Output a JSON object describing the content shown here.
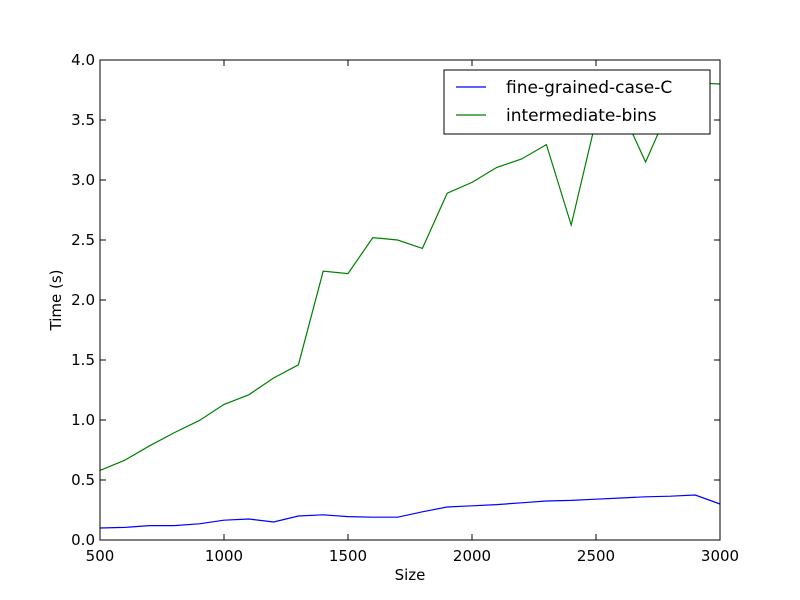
{
  "chart_data": {
    "type": "line",
    "title": "",
    "xlabel": "Size",
    "ylabel": "Time (s)",
    "xlim": [
      500,
      3000
    ],
    "ylim": [
      0,
      4.0
    ],
    "grid": false,
    "legend_position": "top-right",
    "x_ticks": [
      500,
      1000,
      1500,
      2000,
      2500,
      3000
    ],
    "x_tick_labels": [
      "500",
      "1000",
      "1500",
      "2000",
      "2500",
      "3000"
    ],
    "y_ticks": [
      0,
      0.5,
      1.0,
      1.5,
      2.0,
      2.5,
      3.0,
      3.5,
      4.0
    ],
    "y_tick_labels": [
      "0.0",
      "0.5",
      "1.0",
      "1.5",
      "2.0",
      "2.5",
      "3.0",
      "3.5",
      "4.0"
    ],
    "x": [
      500,
      600,
      700,
      800,
      900,
      1000,
      1100,
      1200,
      1300,
      1400,
      1500,
      1600,
      1700,
      1800,
      1900,
      2000,
      2100,
      2200,
      2300,
      2400,
      2500,
      2600,
      2700,
      2800,
      2900,
      3000
    ],
    "series": [
      {
        "name": "fine-grained-case-C",
        "color": "#0000ff",
        "values": [
          0.1,
          0.105,
          0.12,
          0.12,
          0.135,
          0.165,
          0.175,
          0.15,
          0.2,
          0.21,
          0.195,
          0.19,
          0.19,
          0.235,
          0.275,
          0.285,
          0.295,
          0.31,
          0.325,
          0.33,
          0.34,
          0.35,
          0.36,
          0.365,
          0.375,
          0.3
        ]
      },
      {
        "name": "intermediate-bins",
        "color": "#008000",
        "values": [
          0.58,
          0.665,
          0.785,
          0.895,
          0.995,
          1.13,
          1.21,
          1.35,
          1.46,
          2.24,
          2.22,
          2.52,
          2.5,
          2.43,
          2.89,
          2.98,
          3.105,
          3.175,
          3.295,
          2.625,
          3.5,
          3.6,
          3.15,
          3.62,
          3.81,
          3.8
        ]
      }
    ]
  }
}
